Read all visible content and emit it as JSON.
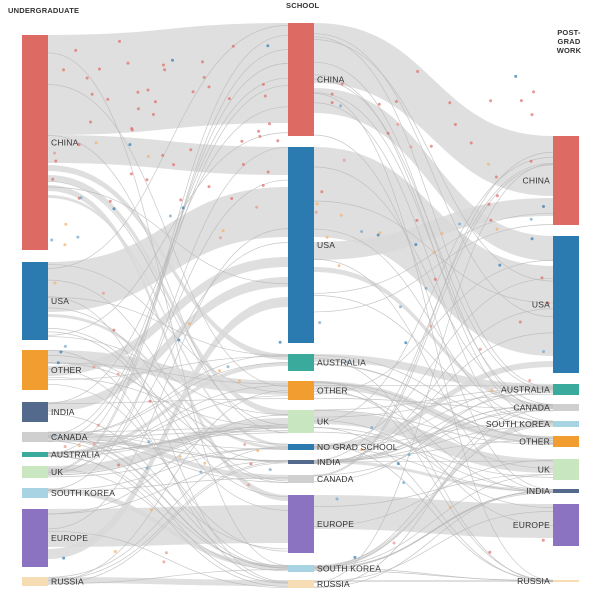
{
  "headers": {
    "undergraduate": "UNDERGRADUATE",
    "school": "SCHOOL",
    "postgrad_line1": "POST-GRAD",
    "postgrad_line2": "WORK"
  },
  "columns": [
    {
      "id": "undergraduate",
      "nodes": [
        {
          "id": "u-china",
          "label": "CHINA",
          "color": "#de6b63"
        },
        {
          "id": "u-usa",
          "label": "USA",
          "color": "#2b7bb0"
        },
        {
          "id": "u-other",
          "label": "OTHER",
          "color": "#f29d2f"
        },
        {
          "id": "u-india",
          "label": "INDIA",
          "color": "#546a8c"
        },
        {
          "id": "u-canada",
          "label": "CANADA",
          "color": "#cfcfcf"
        },
        {
          "id": "u-australia",
          "label": "AUSTRALIA",
          "color": "#3aaa9c"
        },
        {
          "id": "u-uk",
          "label": "UK",
          "color": "#c8e6bf"
        },
        {
          "id": "u-skorea",
          "label": "SOUTH KOREA",
          "color": "#a8d3e3"
        },
        {
          "id": "u-europe",
          "label": "EUROPE",
          "color": "#8b73c2"
        },
        {
          "id": "u-russia",
          "label": "RUSSIA",
          "color": "#f7ddb4"
        }
      ]
    },
    {
      "id": "school",
      "nodes": [
        {
          "id": "s-china",
          "label": "CHINA",
          "color": "#de6b63"
        },
        {
          "id": "s-usa",
          "label": "USA",
          "color": "#2b7bb0"
        },
        {
          "id": "s-australia",
          "label": "AUSTRALIA",
          "color": "#3aaa9c"
        },
        {
          "id": "s-other",
          "label": "OTHER",
          "color": "#f29d2f"
        },
        {
          "id": "s-uk",
          "label": "UK",
          "color": "#c8e6bf"
        },
        {
          "id": "s-nograd",
          "label": "NO GRAD SCHOOL",
          "color": "#2b7bb0"
        },
        {
          "id": "s-india",
          "label": "INDIA",
          "color": "#546a8c"
        },
        {
          "id": "s-canada",
          "label": "CANADA",
          "color": "#cfcfcf"
        },
        {
          "id": "s-europe",
          "label": "EUROPE",
          "color": "#8b73c2"
        },
        {
          "id": "s-skorea",
          "label": "SOUTH KOREA",
          "color": "#a8d3e3"
        },
        {
          "id": "s-russia",
          "label": "RUSSIA",
          "color": "#f7ddb4"
        }
      ]
    },
    {
      "id": "postgrad",
      "nodes": [
        {
          "id": "p-china",
          "label": "CHINA",
          "color": "#de6b63"
        },
        {
          "id": "p-usa",
          "label": "USA",
          "color": "#2b7bb0"
        },
        {
          "id": "p-australia",
          "label": "AUSTRALIA",
          "color": "#3aaa9c"
        },
        {
          "id": "p-canada",
          "label": "CANADA",
          "color": "#cfcfcf"
        },
        {
          "id": "p-skorea",
          "label": "SOUTH KOREA",
          "color": "#a8d3e3"
        },
        {
          "id": "p-other",
          "label": "OTHER",
          "color": "#f29d2f"
        },
        {
          "id": "p-uk",
          "label": "UK",
          "color": "#c8e6bf"
        },
        {
          "id": "p-india",
          "label": "INDIA",
          "color": "#546a8c"
        },
        {
          "id": "p-europe",
          "label": "EUROPE",
          "color": "#8b73c2"
        },
        {
          "id": "p-russia",
          "label": "RUSSIA",
          "color": "#f7ddb4"
        }
      ]
    }
  ],
  "link_color": "#d9d9d9"
}
